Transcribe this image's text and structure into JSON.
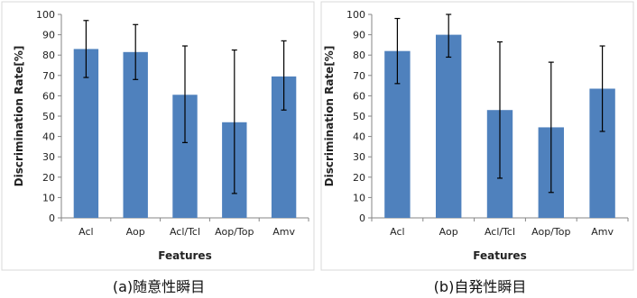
{
  "chart_data": [
    {
      "type": "bar",
      "caption": "(a)随意性瞬目",
      "categories": [
        "Acl",
        "Aop",
        "Acl/Tcl",
        "Aop/Top",
        "Amv"
      ],
      "values": [
        83,
        81.5,
        60.5,
        47,
        69.5
      ],
      "error_low": [
        69,
        68,
        37,
        12,
        53
      ],
      "error_high": [
        97,
        95,
        84.5,
        82.5,
        87
      ],
      "xlabel": "Features",
      "ylabel": "Discrimination Rate[%]",
      "ylim": [
        0,
        100
      ],
      "yticks": [
        0,
        10,
        20,
        30,
        40,
        50,
        60,
        70,
        80,
        90,
        100
      ],
      "grid": false,
      "colors": {
        "bar": "#4f81bd",
        "error": "#000000"
      }
    },
    {
      "type": "bar",
      "caption": "(b)自発性瞬目",
      "categories": [
        "Acl",
        "Aop",
        "Acl/Tcl",
        "Aop/Top",
        "Amv"
      ],
      "values": [
        82,
        90,
        53,
        44.5,
        63.5
      ],
      "error_low": [
        66,
        79,
        19.5,
        12.5,
        42.5
      ],
      "error_high": [
        98,
        100,
        86.5,
        76.5,
        84.5
      ],
      "xlabel": "Features",
      "ylabel": "Discrimination Rate[%]",
      "ylim": [
        0,
        100
      ],
      "yticks": [
        0,
        10,
        20,
        30,
        40,
        50,
        60,
        70,
        80,
        90,
        100
      ],
      "grid": false,
      "colors": {
        "bar": "#4f81bd",
        "error": "#000000"
      }
    }
  ]
}
